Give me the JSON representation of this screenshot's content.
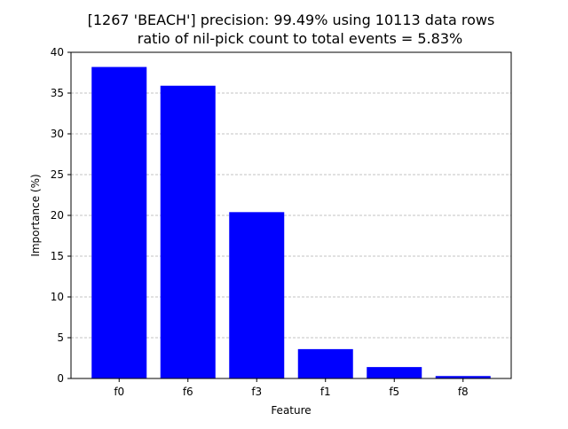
{
  "chart_data": {
    "type": "bar",
    "title": "[1267 'BEACH'] precision: 99.49% using 10113 data rows",
    "subtitle": "ratio of nil-pick count to total events = 5.83%",
    "xlabel": "Feature",
    "ylabel": "Importance (%)",
    "categories": [
      "f0",
      "f6",
      "f3",
      "f1",
      "f5",
      "f8"
    ],
    "values": [
      38.2,
      35.9,
      20.4,
      3.6,
      1.4,
      0.3
    ],
    "ylim": [
      0,
      40
    ],
    "yticks": [
      "0",
      "5",
      "10",
      "15",
      "20",
      "25",
      "30",
      "35",
      "40"
    ],
    "grid": "y-dashed",
    "legend": "none",
    "bar_color": "#0000ff",
    "grid_color": "#b0b0b0"
  }
}
